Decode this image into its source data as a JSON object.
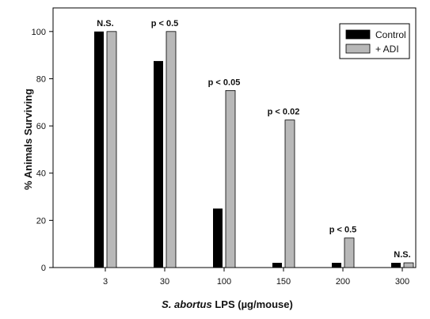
{
  "chart_data": {
    "type": "bar",
    "categories": [
      "3",
      "30",
      "100",
      "150",
      "200",
      "300"
    ],
    "series": [
      {
        "name": "Control",
        "values": [
          100,
          87.5,
          25,
          2,
          2,
          2
        ],
        "color": "#000000"
      },
      {
        "name": "+ ADI",
        "values": [
          100,
          100,
          75,
          62.5,
          12.5,
          2
        ],
        "color": "#b8b8b8"
      }
    ],
    "annotations": [
      "N.S.",
      "p < 0.5",
      "p < 0.05",
      "p < 0.02",
      "p < 0.5",
      "N.S."
    ],
    "xlabel_italic": "S. abortus",
    "xlabel_rest": " LPS (µg/mouse)",
    "ylabel": "% Animals Surviving",
    "ylim": [
      0,
      110
    ],
    "yticks": [
      0,
      20,
      40,
      60,
      80,
      100
    ],
    "grid": false,
    "legend_position": "top-right"
  }
}
